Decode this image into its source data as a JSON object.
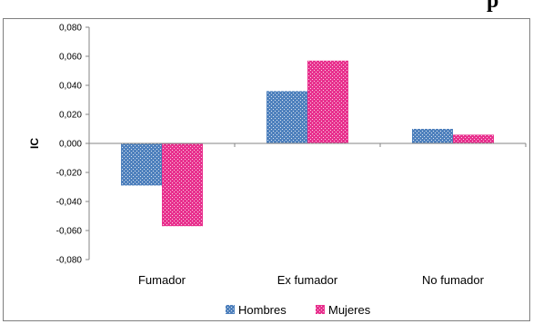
{
  "chart_data": {
    "type": "bar",
    "title": "p",
    "xlabel": "",
    "ylabel": "IC",
    "categories": [
      "Fumador",
      "Ex fumador",
      "No fumador"
    ],
    "series": [
      {
        "name": "Hombres",
        "values": [
          -0.029,
          0.036,
          0.01
        ],
        "color": "#4F81BD"
      },
      {
        "name": "Mujeres",
        "values": [
          -0.057,
          0.057,
          0.006
        ],
        "color": "#E8318E"
      }
    ],
    "ylim": [
      -0.08,
      0.08
    ],
    "yticks": [
      "0,080",
      "0,060",
      "0,040",
      "0,020",
      "0,000",
      "-0,020",
      "-0,040",
      "-0,060",
      "-0,080"
    ],
    "ytick_values": [
      0.08,
      0.06,
      0.04,
      0.02,
      0.0,
      -0.02,
      -0.04,
      -0.06,
      -0.08
    ],
    "grid": false,
    "legend": "bottom"
  }
}
